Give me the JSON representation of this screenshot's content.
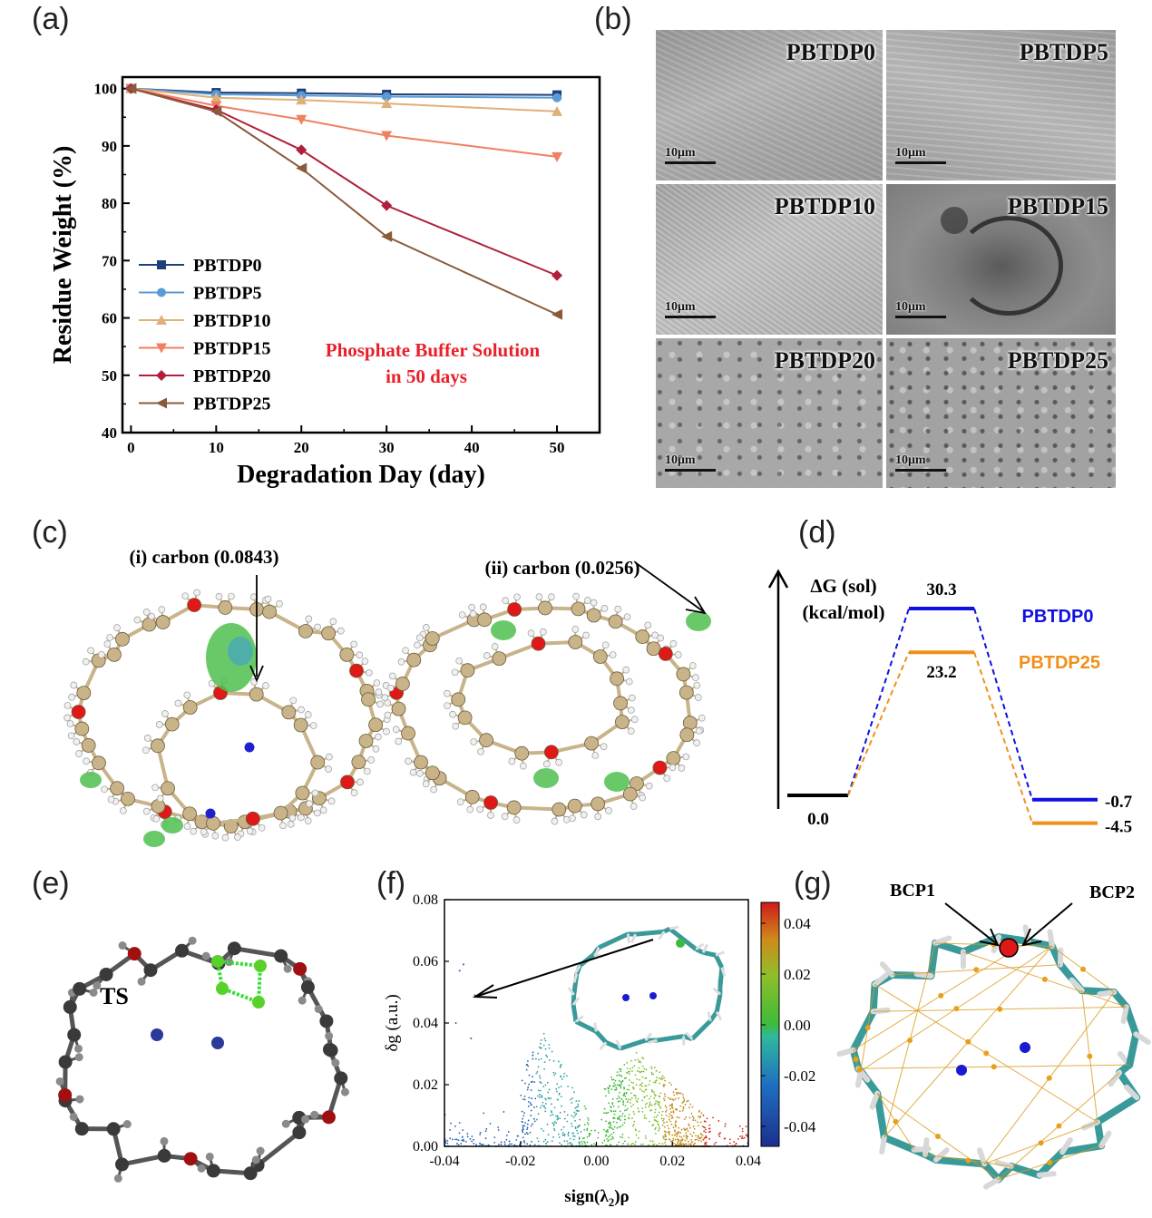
{
  "panels": {
    "a": "(a)",
    "b": "(b)",
    "c": "(c)",
    "d": "(d)",
    "e": "(e)",
    "f": "(f)",
    "g": "(g)"
  },
  "colors": {
    "PBTDP0": "#1f3f7a",
    "PBTDP5": "#5b9bd5",
    "PBTDP10": "#e0b07a",
    "PBTDP15": "#ef8060",
    "PBTDP20": "#b0203a",
    "PBTDP25": "#8a5a3a",
    "annotation_red": "#e8202a",
    "blue_level": "#1010e0",
    "orange_level": "#f0901a"
  },
  "chart_data": [
    {
      "type": "line",
      "xlabel": "Degradation Day (day)",
      "ylabel": "Residue Weight (%)",
      "xlim": [
        -1,
        55
      ],
      "ylim": [
        40,
        102
      ],
      "xticks": [
        0,
        10,
        20,
        30,
        40,
        50
      ],
      "yticks": [
        40,
        50,
        60,
        70,
        80,
        90,
        100
      ],
      "annotation": [
        "Phosphate Buffer Solution",
        "in 50 days"
      ],
      "legend": "left",
      "series": [
        {
          "name": "PBTDP0",
          "marker": "square",
          "x": [
            0,
            10,
            20,
            30,
            50
          ],
          "y": [
            100,
            99.3,
            99.2,
            99.0,
            98.9
          ]
        },
        {
          "name": "PBTDP5",
          "marker": "circle",
          "x": [
            0,
            10,
            20,
            30,
            50
          ],
          "y": [
            100,
            99.0,
            98.8,
            98.6,
            98.4
          ]
        },
        {
          "name": "PBTDP10",
          "marker": "triangle-up",
          "x": [
            0,
            10,
            20,
            30,
            50
          ],
          "y": [
            100,
            98.4,
            98.0,
            97.4,
            96.0
          ]
        },
        {
          "name": "PBTDP15",
          "marker": "triangle-down",
          "x": [
            0,
            10,
            20,
            30,
            50
          ],
          "y": [
            100,
            97.0,
            94.6,
            91.8,
            88.1
          ]
        },
        {
          "name": "PBTDP20",
          "marker": "diamond",
          "x": [
            0,
            10,
            20,
            30,
            50
          ],
          "y": [
            100,
            96.3,
            89.3,
            79.6,
            67.4
          ]
        },
        {
          "name": "PBTDP25",
          "marker": "triangle-left",
          "x": [
            0,
            10,
            20,
            30,
            50
          ],
          "y": [
            100,
            96.0,
            86.1,
            74.2,
            60.6
          ]
        }
      ]
    },
    {
      "type": "line",
      "title": "",
      "ylabel": "ΔG (sol) (kcal/mol)",
      "series": [
        {
          "name": "PBTDP0",
          "levels": [
            0.0,
            30.3,
            -0.7
          ]
        },
        {
          "name": "PBTDP25",
          "levels": [
            0.0,
            23.2,
            -4.5
          ]
        }
      ],
      "labels": {
        "start": "0.0",
        "ts0": "30.3",
        "ts25": "23.2",
        "end0": "-0.7",
        "end25": "-4.5"
      }
    },
    {
      "type": "scatter",
      "xlabel": "sign(λ2)ρ",
      "ylabel": "δg (a.u.)",
      "xlim": [
        -0.04,
        0.04
      ],
      "ylim": [
        0,
        0.08
      ],
      "xticks": [
        "-0.04",
        "-0.02",
        "0.00",
        "0.02",
        "0.04"
      ],
      "yticks": [
        "0.00",
        "0.02",
        "0.04",
        "0.06",
        "0.08"
      ],
      "colorbar": {
        "ticks": [
          "0.04",
          "0.02",
          "0.00",
          "-0.02",
          "-0.04"
        ]
      }
    }
  ],
  "sem": {
    "scale_label": "10μm",
    "cells": [
      "PBTDP0",
      "PBTDP5",
      "PBTDP10",
      "PBTDP15",
      "PBTDP20",
      "PBTDP25"
    ]
  },
  "panel_c": {
    "label_i": "(i)  carbon (0.0843)",
    "label_ii": "(ii)  carbon (0.0256)"
  },
  "panel_d": {
    "axis_line1": "ΔG (sol)",
    "axis_line2": "(kcal/mol)",
    "legend0": "PBTDP0",
    "legend25": "PBTDP25"
  },
  "panel_e": {
    "ts": "TS"
  },
  "panel_g": {
    "bcp1": "BCP1",
    "bcp2": "BCP2"
  }
}
